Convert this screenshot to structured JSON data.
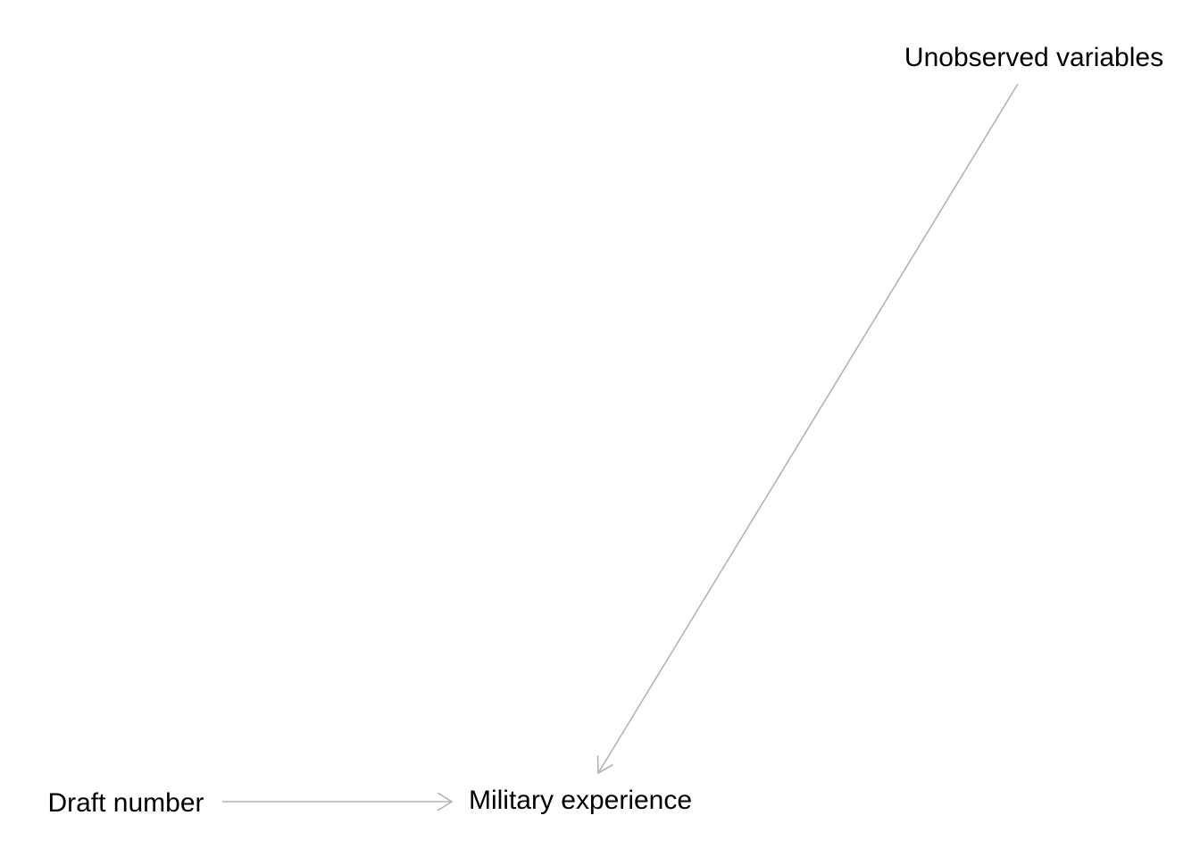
{
  "diagram": {
    "nodes": {
      "unobserved": {
        "label": "Unobserved variables"
      },
      "draft": {
        "label": "Draft number"
      },
      "military": {
        "label": "Military experience"
      }
    },
    "edges": [
      {
        "from": "unobserved",
        "to": "military"
      },
      {
        "from": "draft",
        "to": "military"
      }
    ],
    "colors": {
      "edge": "#b3b3b3",
      "text": "#000000",
      "background": "#ffffff"
    }
  }
}
